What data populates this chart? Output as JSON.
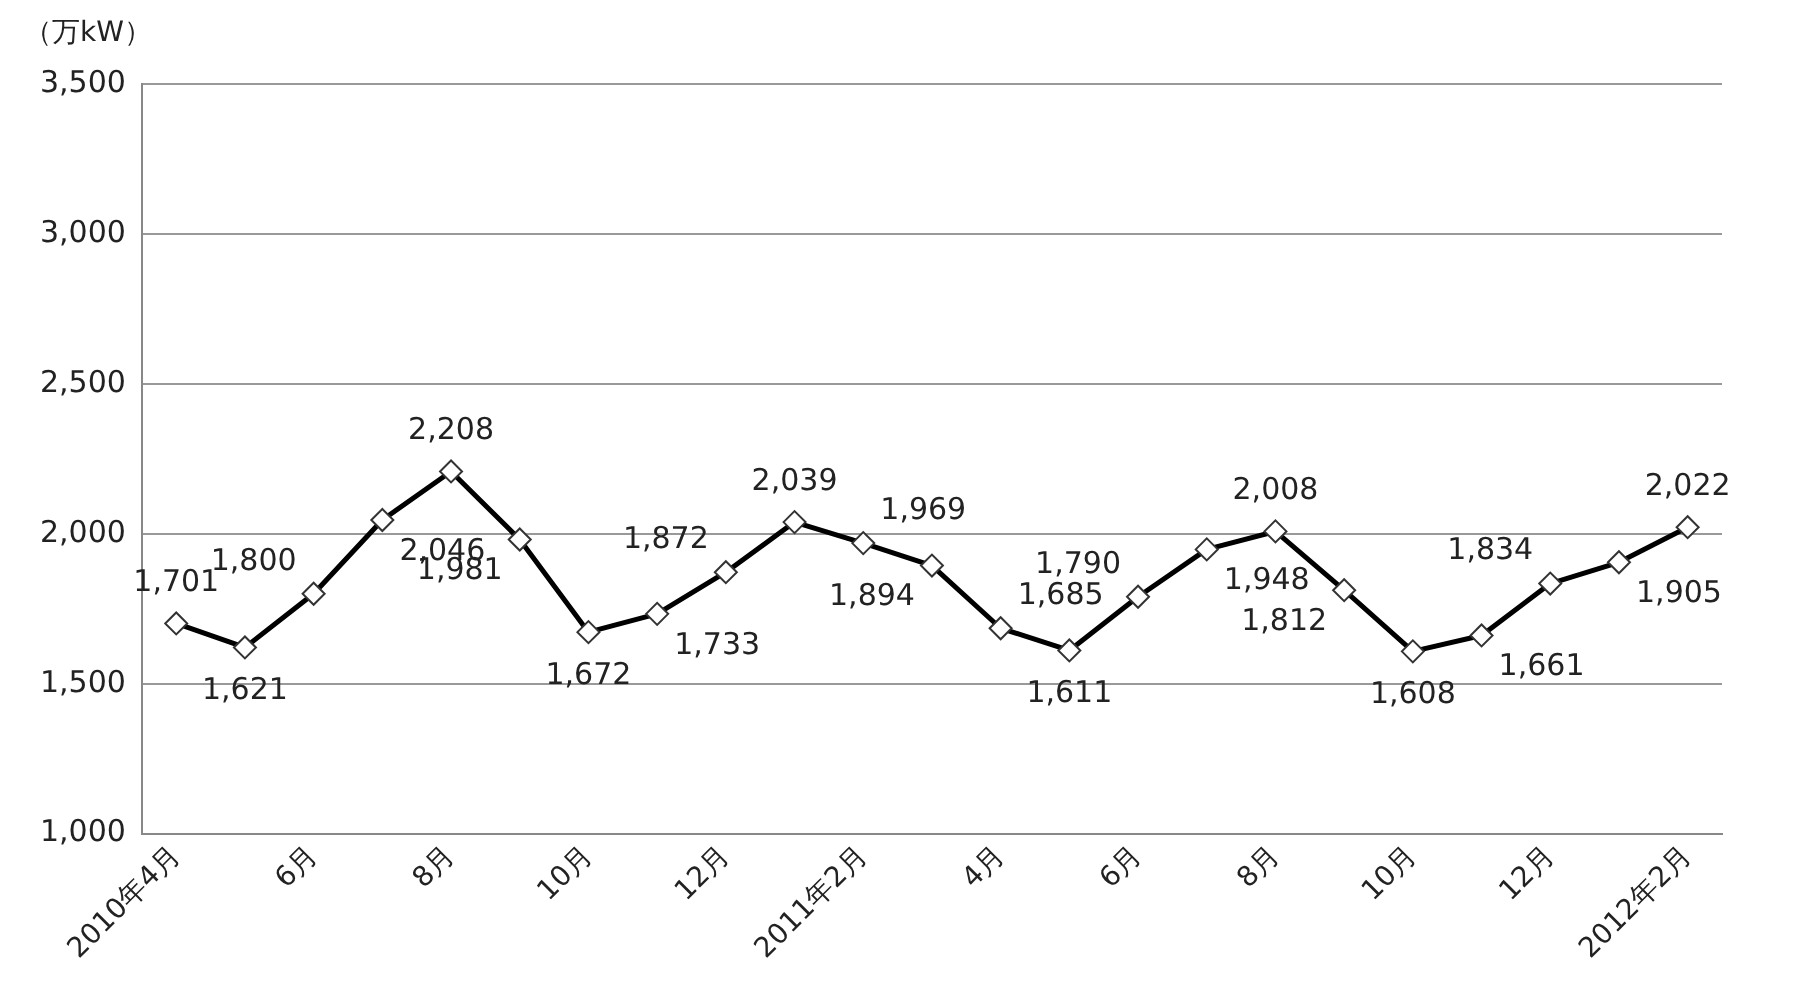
{
  "chart_data": {
    "type": "line",
    "ylabel": "（万kW）",
    "categories": [
      "2010年4月",
      null,
      "6月",
      null,
      "8月",
      null,
      "10月",
      null,
      "12月",
      null,
      "2011年2月",
      null,
      "4月",
      null,
      "6月",
      null,
      "8月",
      null,
      "10月",
      null,
      "12月",
      null,
      "2012年2月"
    ],
    "series": [
      {
        "color": "#000000",
        "values": [
          1701,
          1621,
          1800,
          2046,
          2208,
          1981,
          1672,
          1733,
          1872,
          2039,
          1969,
          1894,
          1685,
          1611,
          1790,
          1948,
          2008,
          1812,
          1608,
          1661,
          1834,
          1905,
          2022
        ],
        "value_labels": [
          "1,701",
          "1,621",
          "1,800",
          "2,046",
          "2,208",
          "1,981",
          "1,672",
          "1,733",
          "1,872",
          "2,039",
          "1,969",
          "1,894",
          "1,685",
          "1,611",
          "1,790",
          "1,948",
          "2,008",
          "1,812",
          "1,608",
          "1,661",
          "1,834",
          "1,905",
          "2,022"
        ]
      }
    ],
    "ylim": [
      1000,
      3500
    ],
    "yticks": [
      {
        "value": 1000,
        "label": "1,000"
      },
      {
        "value": 1500,
        "label": "1,500"
      },
      {
        "value": 2000,
        "label": "2,000"
      },
      {
        "value": 2500,
        "label": "2,500"
      },
      {
        "value": 3000,
        "label": "3,000"
      },
      {
        "value": 3500,
        "label": "3,500"
      }
    ],
    "grid": "y",
    "legend": false,
    "marker": "diamond",
    "line_style": "solid"
  }
}
